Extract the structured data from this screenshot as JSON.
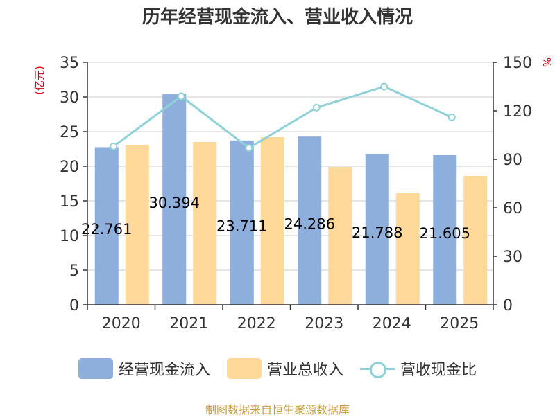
{
  "title": "历年经营现金流入、营业收入情况",
  "source": "制图数据来自恒生聚源数据库",
  "colors": {
    "cash_inflow": "#8eaedb",
    "revenue": "#fed999",
    "ratio": "#8ed2d8",
    "left_unit": "#e0000f",
    "axis": "#333333",
    "grid": "#cccccc"
  },
  "chart_data": {
    "type": "bar",
    "categories": [
      "2020",
      "2021",
      "2022",
      "2023",
      "2024",
      "2025"
    ],
    "series": [
      {
        "name": "经营现金流入",
        "type": "bar",
        "axis": "left",
        "values": [
          22.761,
          30.394,
          23.711,
          24.286,
          21.788,
          21.605
        ],
        "data_labels": [
          "22.761",
          "30.394",
          "23.711",
          "24.286",
          "21.788",
          "21.605"
        ]
      },
      {
        "name": "营业总收入",
        "type": "bar",
        "axis": "left",
        "values": [
          23.1,
          23.5,
          24.2,
          19.9,
          16.1,
          18.6
        ]
      },
      {
        "name": "营收现金比",
        "type": "line",
        "axis": "right",
        "values": [
          98,
          129,
          97,
          122,
          135,
          116
        ]
      }
    ],
    "ylabel_left": "(亿元)",
    "ylabel_right": "%",
    "ylim_left": [
      0,
      35
    ],
    "yticks_left": [
      "0",
      "5",
      "10",
      "15",
      "20",
      "25",
      "30",
      "35"
    ],
    "ylim_right": [
      0,
      150
    ],
    "yticks_right": [
      "0",
      "30",
      "60",
      "90",
      "120",
      "150"
    ],
    "grid": true,
    "legend": "bottom"
  }
}
